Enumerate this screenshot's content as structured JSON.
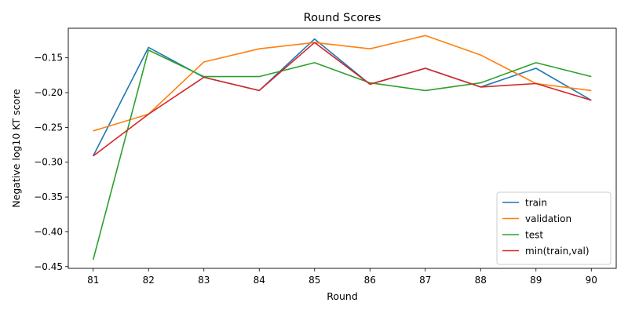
{
  "chart_data": {
    "type": "line",
    "title": "Round Scores",
    "xlabel": "Round",
    "ylabel": "Negative log10 KT score",
    "x": [
      81,
      82,
      83,
      84,
      85,
      86,
      87,
      88,
      89,
      90
    ],
    "x_tick_labels": [
      "81",
      "82",
      "83",
      "84",
      "85",
      "86",
      "87",
      "88",
      "89",
      "90"
    ],
    "y_ticks": [
      -0.45,
      -0.4,
      -0.35,
      -0.3,
      -0.25,
      -0.2,
      -0.15
    ],
    "y_tick_labels": [
      "−0.45",
      "−0.40",
      "−0.35",
      "−0.30",
      "−0.25",
      "−0.20",
      "−0.15"
    ],
    "xlim": [
      80.55,
      90.45
    ],
    "ylim": [
      -0.4525,
      -0.1075
    ],
    "grid": false,
    "legend_position": "lower-right",
    "series": [
      {
        "name": "train",
        "color": "#1f77b4",
        "values": [
          -0.291,
          -0.135,
          -0.178,
          -0.197,
          -0.123,
          -0.188,
          -0.165,
          -0.192,
          -0.165,
          -0.211
        ]
      },
      {
        "name": "validation",
        "color": "#ff7f0e",
        "values": [
          -0.255,
          -0.231,
          -0.156,
          -0.137,
          -0.128,
          -0.137,
          -0.118,
          -0.146,
          -0.187,
          -0.197
        ]
      },
      {
        "name": "test",
        "color": "#2ca02c",
        "values": [
          -0.44,
          -0.139,
          -0.177,
          -0.177,
          -0.157,
          -0.186,
          -0.197,
          -0.186,
          -0.157,
          -0.177
        ]
      },
      {
        "name": "min(train,val)",
        "color": "#d62728",
        "values": [
          -0.291,
          -0.231,
          -0.178,
          -0.197,
          -0.128,
          -0.188,
          -0.165,
          -0.192,
          -0.187,
          -0.211
        ]
      }
    ]
  }
}
